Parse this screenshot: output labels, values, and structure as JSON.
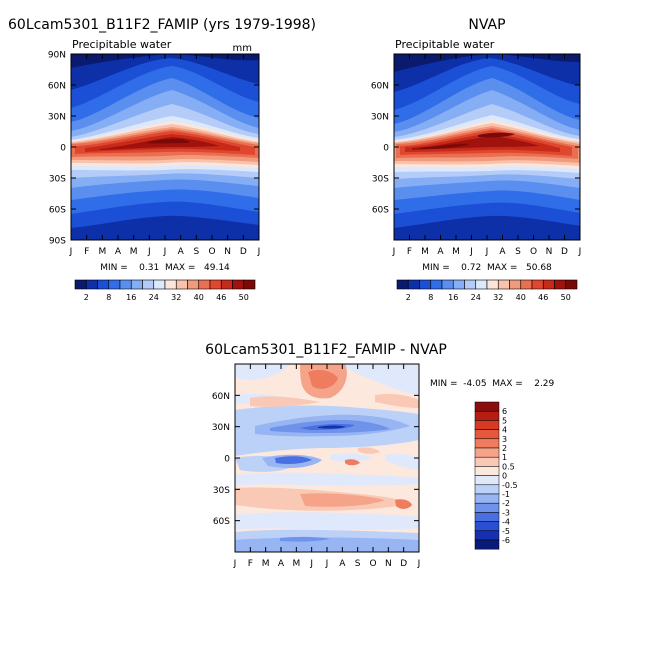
{
  "chart_data": [
    {
      "type": "heatmap",
      "panel": "top-left",
      "title": "60Lcam5301_B11F2_FAMIP (yrs 1979-1998)",
      "subtitle": "Precipitable water",
      "units": "mm",
      "x": [
        "J",
        "F",
        "M",
        "A",
        "M",
        "J",
        "J",
        "A",
        "S",
        "O",
        "N",
        "D",
        "J"
      ],
      "y": [
        "90N",
        "60N",
        "30N",
        "0",
        "30S",
        "60S",
        "90S"
      ],
      "stats_text": "MIN =    0.31  MAX =   49.14",
      "colorbar": {
        "labels": [
          "2",
          "8",
          "16",
          "24",
          "32",
          "40",
          "46",
          "50"
        ],
        "colors": [
          "#0a1a6e",
          "#0d2fa8",
          "#1a4fd6",
          "#2f6ee8",
          "#5a8ff0",
          "#86aef4",
          "#b4ccf7",
          "#dce8fb",
          "#fce6dc",
          "#f8c2ac",
          "#f29b7c",
          "#ea6f52",
          "#e0472f",
          "#c82a1a",
          "#a0120d",
          "#7a0a08"
        ]
      }
    },
    {
      "type": "heatmap",
      "panel": "top-right",
      "title": "NVAP",
      "subtitle": "Precipitable water",
      "x": [
        "J",
        "F",
        "M",
        "A",
        "M",
        "J",
        "J",
        "A",
        "S",
        "O",
        "N",
        "D",
        "J"
      ],
      "y": [
        "60N",
        "30N",
        "0",
        "30S",
        "60S"
      ],
      "stats_text": "MIN =    0.72  MAX =   50.68",
      "colorbar": {
        "labels": [
          "2",
          "8",
          "16",
          "24",
          "32",
          "40",
          "46",
          "50"
        ]
      }
    },
    {
      "type": "heatmap",
      "panel": "bottom",
      "title": "60Lcam5301_B11F2_FAMIP - NVAP",
      "x": [
        "J",
        "F",
        "M",
        "A",
        "M",
        "J",
        "J",
        "A",
        "S",
        "O",
        "N",
        "D",
        "J"
      ],
      "y": [
        "60N",
        "30N",
        "0",
        "30S",
        "60S"
      ],
      "stats_text": "MIN =  -4.05  MAX =    2.29",
      "colorbar": {
        "labels": [
          "6",
          "5",
          "4",
          "3",
          "2",
          "1",
          "0.5",
          "0",
          "-0.5",
          "-1",
          "-2",
          "-3",
          "-4",
          "-5",
          "-6"
        ],
        "colors": [
          "#8b0e0e",
          "#b81d14",
          "#d63a22",
          "#e6583a",
          "#ef7c5e",
          "#f5a489",
          "#fac9b6",
          "#fde8dd",
          "#dfe9fb",
          "#bcd1f7",
          "#97b5f2",
          "#6f93ea",
          "#4a6fe0",
          "#2a4fd2",
          "#1530b0",
          "#0a1a78"
        ]
      }
    }
  ]
}
